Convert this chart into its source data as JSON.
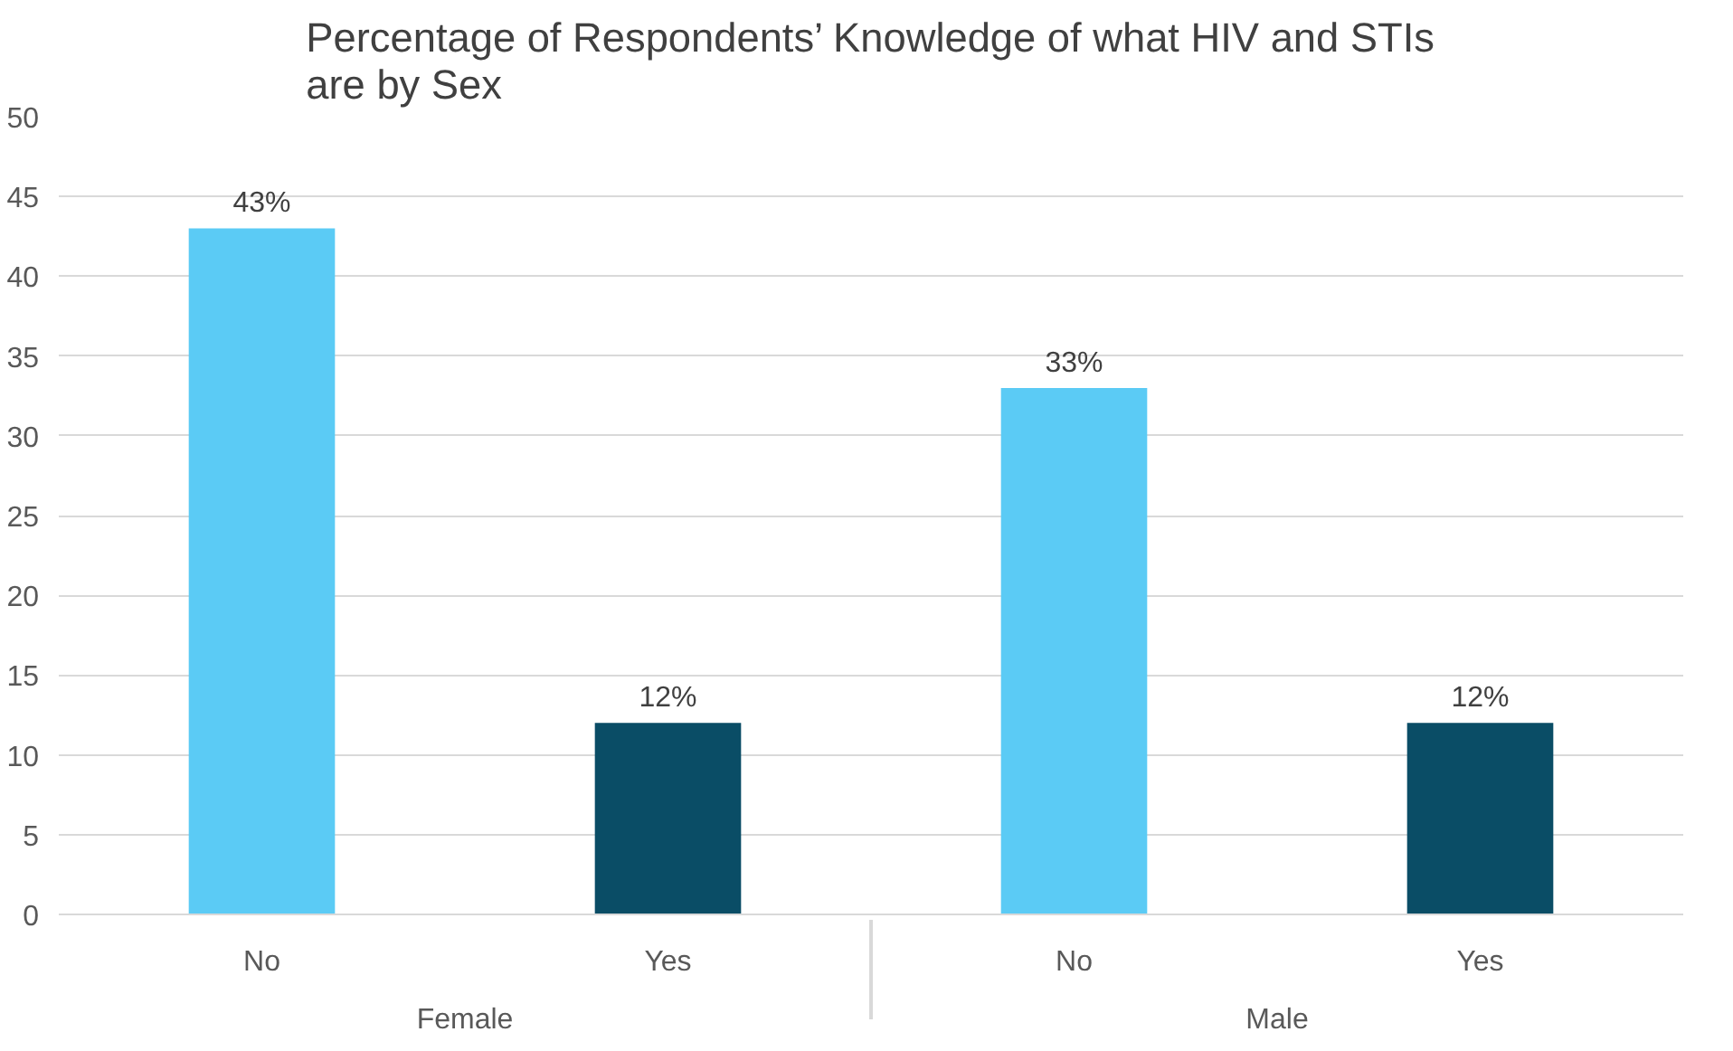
{
  "chart_data": {
    "type": "bar",
    "title": "Percentage of Respondents’ Knowledge of what HIV and STIs\nare by Sex",
    "categories": [
      "No",
      "Yes",
      "No",
      "Yes"
    ],
    "annotations": [
      "Female",
      "Male"
    ],
    "values": [
      43,
      12,
      33,
      12
    ],
    "colors": [
      "#5bcbf5",
      "#0a4d66",
      "#5bcbf5",
      "#0a4d66"
    ],
    "value_labels": [
      "43%",
      "12%",
      "33%",
      "12%"
    ],
    "ylim": [
      0,
      50
    ],
    "yticks": [
      0,
      5,
      10,
      15,
      20,
      25,
      30,
      35,
      40,
      45,
      50
    ],
    "grid": "y"
  }
}
